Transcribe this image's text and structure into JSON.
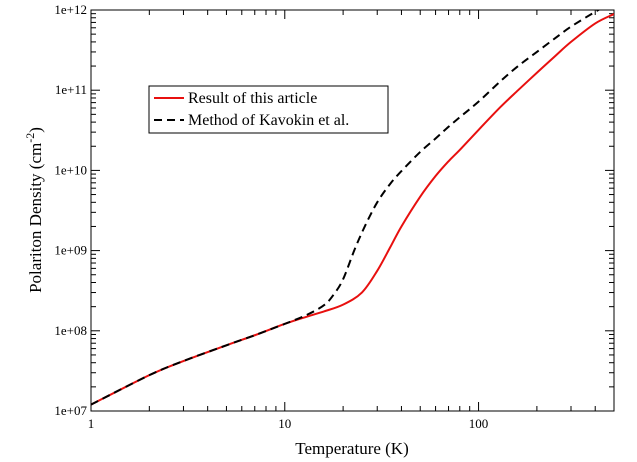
{
  "chart_data": {
    "type": "line",
    "xscale": "log",
    "yscale": "log",
    "xlim": [
      1,
      500
    ],
    "ylim": [
      10000000,
      1000000000000
    ],
    "xlabel": "Temperature (K)",
    "ylabel_main": "Polariton Density (cm",
    "ylabel_exp": "-2",
    "ylabel_close": ")",
    "xticks": [
      {
        "value": 1,
        "label": "1"
      },
      {
        "value": 10,
        "label": "10"
      },
      {
        "value": 100,
        "label": "100"
      }
    ],
    "yticks": [
      {
        "value": 10000000,
        "label": "1e+07"
      },
      {
        "value": 100000000,
        "label": "1e+08"
      },
      {
        "value": 1000000000,
        "label": "1e+09"
      },
      {
        "value": 10000000000,
        "label": "1e+10"
      },
      {
        "value": 100000000000,
        "label": "1e+11"
      },
      {
        "value": 1000000000000,
        "label": "1e+12"
      }
    ],
    "grid": false,
    "legend_position": "upper-left",
    "series": [
      {
        "name": "Result of this article",
        "color": "#e8100f",
        "dash": "solid",
        "x": [
          1,
          2,
          3,
          5,
          7,
          10,
          13,
          16,
          20,
          25,
          30,
          35,
          40,
          50,
          60,
          70,
          80,
          100,
          130,
          160,
          200,
          250,
          300,
          400,
          500
        ],
        "y": [
          12000000,
          28000000,
          42000000,
          66000000,
          88000000,
          122000000,
          150000000,
          175000000,
          212000000,
          300000000,
          560000000,
          1100000000,
          2000000000,
          4700000000,
          8500000000,
          13000000000,
          18000000000,
          32000000000,
          62000000000,
          100000000000,
          165000000000,
          270000000000,
          400000000000,
          680000000000,
          890000000000
        ]
      },
      {
        "name": "Method of Kavokin et al.",
        "color": "#000000",
        "dash": "dashed",
        "x": [
          1,
          2,
          3,
          5,
          7,
          10,
          13,
          16,
          18,
          20,
          23,
          26,
          30,
          35,
          40,
          50,
          60,
          70,
          80,
          100,
          130,
          160,
          200,
          250,
          300,
          400,
          450
        ],
        "y": [
          12000000,
          28000000,
          42000000,
          66000000,
          88000000,
          122000000,
          158000000,
          210000000,
          290000000,
          440000000,
          1050000000,
          2050000000,
          4000000000,
          6800000000,
          9800000000,
          17000000000,
          25000000000,
          35000000000,
          46000000000,
          72000000000,
          130000000000,
          200000000000,
          300000000000,
          450000000000,
          620000000000,
          950000000000,
          1100000000000
        ]
      }
    ]
  }
}
